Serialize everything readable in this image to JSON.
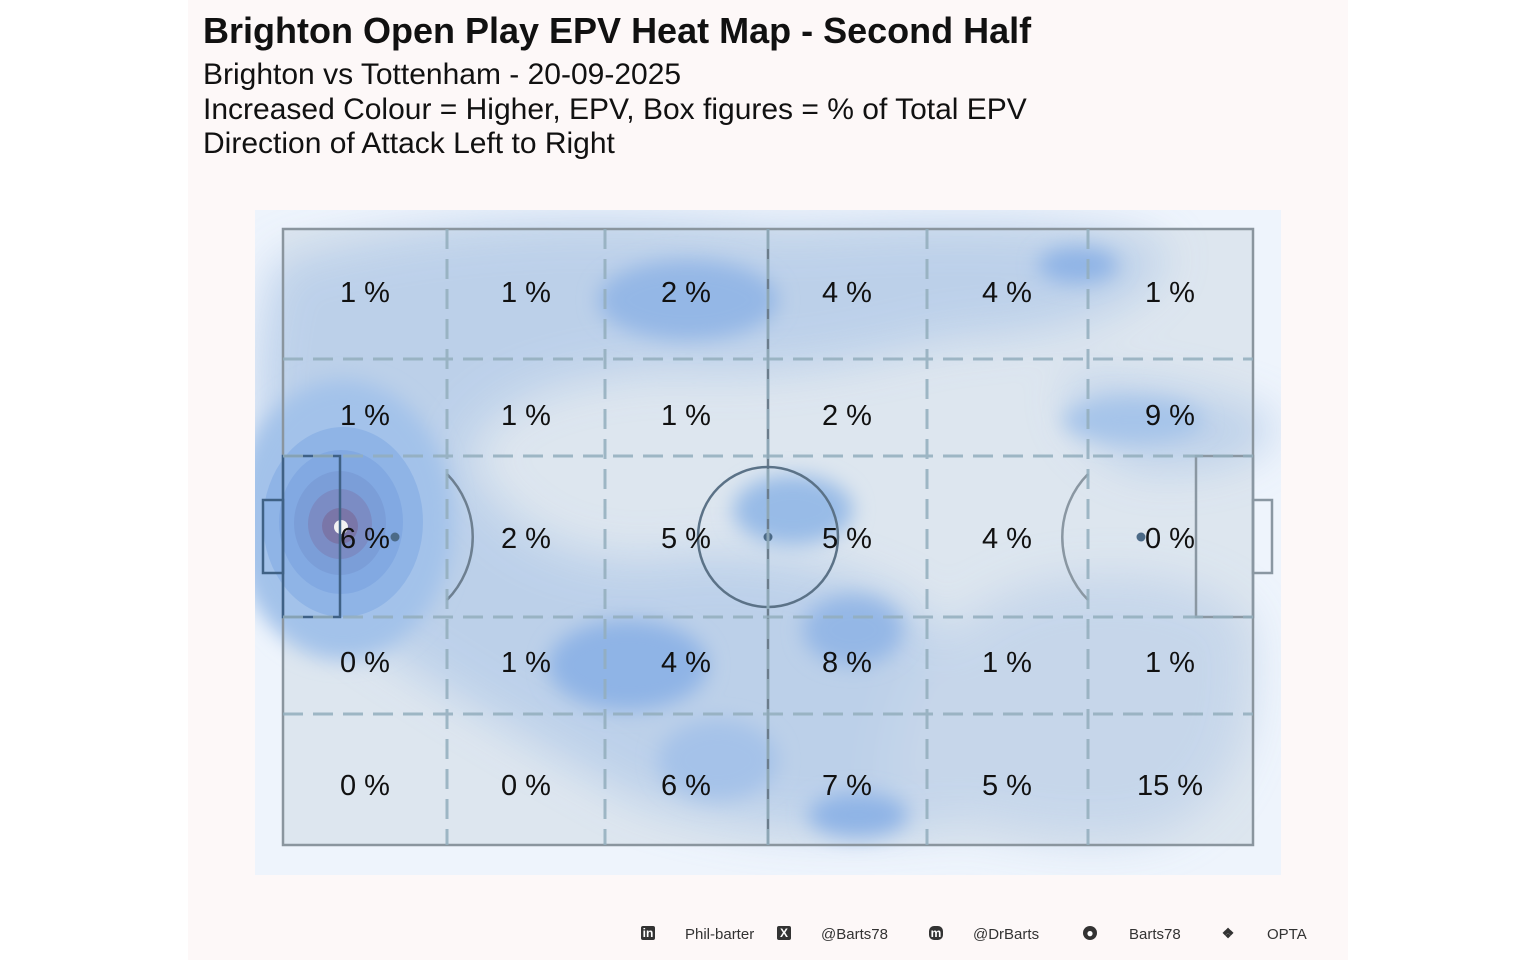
{
  "title": "Brighton Open Play EPV Heat Map - Second Half",
  "subtitle_lines": [
    "Brighton vs Tottenham - 20-09-2025",
    "Increased Colour = Higher, EPV, Box figures = % of Total EPV",
    "Direction of Attack Left to Right"
  ],
  "chart_data": {
    "type": "heatmap",
    "title": "Brighton Open Play EPV Heat Map - Second Half",
    "direction": "left-to-right",
    "unit": "% of Total EPV",
    "grid_rows_top_to_bottom": [
      [
        "1 %",
        "1 %",
        "2 %",
        "4 %",
        "4 %",
        "1 %"
      ],
      [
        "1 %",
        "1 %",
        "1 %",
        "2 %",
        "",
        "9 %"
      ],
      [
        "6 %",
        "2 %",
        "5 %",
        "5 %",
        "4 %",
        "0 %"
      ],
      [
        "0 %",
        "1 %",
        "4 %",
        "8 %",
        "1 %",
        "1 %"
      ],
      [
        "0 %",
        "0 %",
        "6 %",
        "7 %",
        "5 %",
        "15 %"
      ]
    ],
    "colors": {
      "low": "#dde6ef",
      "mid": "#7aaae6",
      "high": "#7a6fa8",
      "background": "#eef4fc"
    }
  },
  "footer": {
    "items": [
      {
        "icon": "linkedin-icon",
        "label": "Phil-barter"
      },
      {
        "icon": "x-twitter-icon",
        "label": "@Barts78"
      },
      {
        "icon": "mastodon-icon",
        "label": "@DrBarts"
      },
      {
        "icon": "github-icon",
        "label": "Barts78"
      },
      {
        "icon": "dropbox-icon",
        "label": "OPTA"
      }
    ]
  }
}
